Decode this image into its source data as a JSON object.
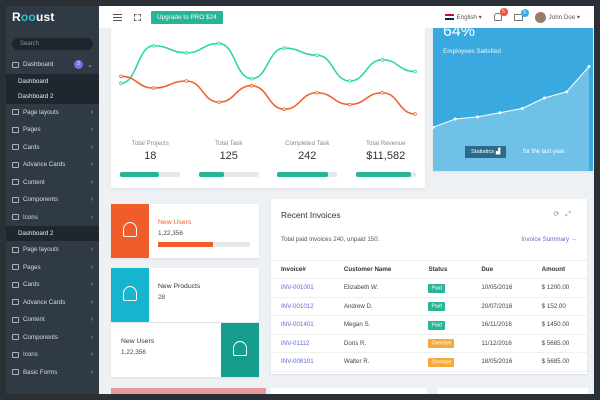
{
  "app": {
    "logo_left": "R",
    "logo_o": "oo",
    "logo_right": "ust"
  },
  "sidebar": {
    "search_placeholder": "Search",
    "items": [
      {
        "label": "Dashboard",
        "badge": "2",
        "type": "item"
      },
      {
        "label": "Dashboard",
        "type": "sub"
      },
      {
        "label": "Dashboard 2",
        "type": "sub"
      },
      {
        "label": "Page layouts",
        "type": "item"
      },
      {
        "label": "Pages",
        "type": "item"
      },
      {
        "label": "Cards",
        "type": "item"
      },
      {
        "label": "Advance Cards",
        "type": "item"
      },
      {
        "label": "Content",
        "type": "item"
      },
      {
        "label": "Components",
        "type": "item"
      },
      {
        "label": "Icons",
        "type": "item"
      },
      {
        "label": "Dashboard 2",
        "type": "sub"
      },
      {
        "label": "Page layouts",
        "type": "item"
      },
      {
        "label": "Pages",
        "type": "item"
      },
      {
        "label": "Cards",
        "type": "item"
      },
      {
        "label": "Advance Cards",
        "type": "item"
      },
      {
        "label": "Content",
        "type": "item"
      },
      {
        "label": "Components",
        "type": "item"
      },
      {
        "label": "Icons",
        "type": "item"
      },
      {
        "label": "Basic Forms",
        "type": "item"
      }
    ]
  },
  "topbar": {
    "upgrade_label": "Upgrade to PRO $24",
    "language": "English",
    "notif_count": "5",
    "mail_count": "5",
    "user_name": "John Doe",
    "notif_color": "#f0513a",
    "mail_color": "#3aa9df"
  },
  "stats": [
    {
      "label": "Total Projects",
      "value": "18",
      "progress": 0.65
    },
    {
      "label": "Total Task",
      "value": "125",
      "progress": 0.42
    },
    {
      "label": "Completed Task",
      "value": "242",
      "progress": 0.85
    },
    {
      "label": "Total Revenue",
      "value": "$11,582",
      "progress": 0.92
    }
  ],
  "satisfaction": {
    "value": "64%",
    "label": "Employees Satisfied",
    "button_label": "Statistics",
    "period": "for the last year."
  },
  "mini_cards": [
    {
      "title": "New Users",
      "value": "1,22,356",
      "progress": 0.6,
      "color": "#f05d2a",
      "title_color": "#f05d2a",
      "icon": "user-icon",
      "tile_side": "left"
    },
    {
      "title": "New Products",
      "value": "28",
      "color": "#17b4d0",
      "title_color": "#333333",
      "icon": "camera-icon",
      "tile_side": "left"
    },
    {
      "title": "New Users",
      "value": "1,22,356",
      "color": "#169e8c",
      "title_color": "#333333",
      "icon": "user-icon",
      "tile_side": "right"
    }
  ],
  "invoices": {
    "title": "Recent Invoices",
    "summary_text": "Total paid invoices 240, unpaid 150.",
    "link_label": "Invoice Summary",
    "columns": [
      "Invoice#",
      "Customer Name",
      "Status",
      "Due",
      "Amount"
    ],
    "rows": [
      {
        "id": "INV-001001",
        "customer": "Elizabeth W.",
        "status": "Paid",
        "due": "10/05/2016",
        "amount": "$ 1200.00"
      },
      {
        "id": "INV-001012",
        "customer": "Andrew D.",
        "status": "Paid",
        "due": "20/07/2016",
        "amount": "$ 152.00"
      },
      {
        "id": "INV-001401",
        "customer": "Megan S.",
        "status": "Paid",
        "due": "16/11/2016",
        "amount": "$ 1450.00"
      },
      {
        "id": "INV-01112",
        "customer": "Doris R.",
        "status": "Overdue",
        "due": "11/12/2016",
        "amount": "$ 5685.00"
      },
      {
        "id": "INV-008101",
        "customer": "Walter R.",
        "status": "Overdue",
        "due": "18/05/2016",
        "amount": "$ 5685.00"
      }
    ],
    "status_colors": {
      "Paid": "#26b596",
      "Overdue": "#f4a93b"
    }
  },
  "chart_data": [
    {
      "type": "line",
      "x": [
        0,
        1,
        2,
        3,
        4,
        5,
        6,
        7,
        8,
        9
      ],
      "series": [
        {
          "color": "#2fd5ae",
          "values": [
            38,
            70,
            64,
            72,
            42,
            68,
            62,
            40,
            58,
            48
          ]
        },
        {
          "color": "#f2622e",
          "values": [
            44,
            34,
            40,
            22,
            36,
            16,
            30,
            20,
            30,
            12
          ]
        }
      ],
      "ylim": [
        0,
        80
      ]
    },
    {
      "type": "area",
      "x": [
        0,
        1,
        2,
        3,
        4,
        5,
        6,
        7
      ],
      "series": [
        {
          "color": "#ffffff",
          "values": [
            12,
            20,
            22,
            26,
            30,
            40,
            46,
            70
          ]
        }
      ],
      "ylim": [
        0,
        80
      ]
    }
  ]
}
